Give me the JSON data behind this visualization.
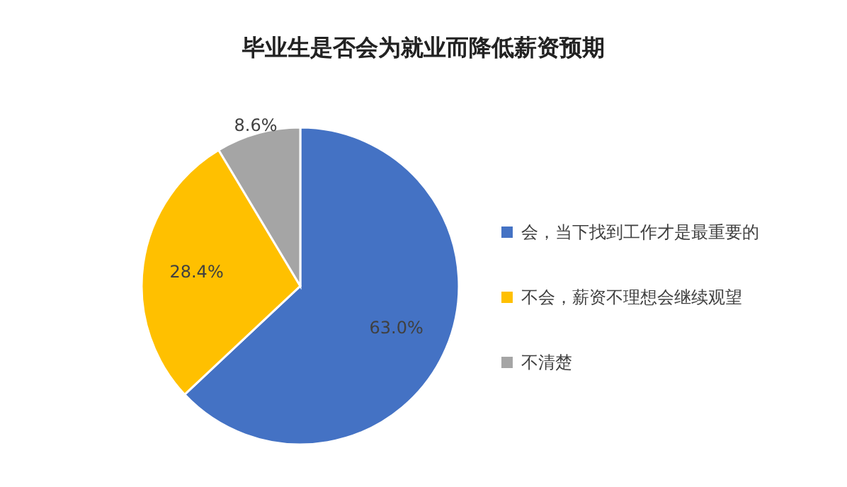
{
  "chart_data": {
    "type": "pie",
    "title": "毕业生是否会为就业而降低薪资预期",
    "categories": [
      "会，当下找到工作才是最重要的",
      "不会，薪资不理想会继续观望",
      "不清楚"
    ],
    "values": [
      63.0,
      28.4,
      8.6
    ],
    "colors": [
      "#4472c4",
      "#ffc000",
      "#a5a5a5"
    ],
    "value_labels": [
      "63.0%",
      "28.4%",
      "8.6%"
    ],
    "legend": "right"
  }
}
